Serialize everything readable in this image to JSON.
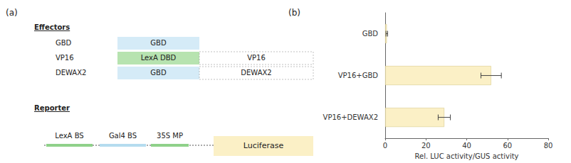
{
  "chart_data": {
    "type": "bar",
    "orientation": "horizontal",
    "categories": [
      "GBD",
      "VP16+GBD",
      "VP16+DEWAX2"
    ],
    "values": [
      0.8,
      52,
      29
    ],
    "errors": [
      0.4,
      5,
      3
    ],
    "color": "#fbf0c6",
    "x_label": "Rel. LUC activity/GUS activity",
    "xlim": [
      0,
      80
    ],
    "xticks": [
      0,
      20,
      40,
      60,
      80
    ],
    "grid": false
  },
  "diagram": {
    "panel_labels": [
      "(a)",
      "(b)"
    ],
    "effectors": {
      "title": "Effectors",
      "rows": [
        {
          "label": "GBD",
          "domains": [
            {
              "text": "GBD",
              "color": "#d5ebf7"
            }
          ]
        },
        {
          "label": "VP16",
          "domains": [
            {
              "text": "LexA DBD",
              "color": "#b7e3b0"
            },
            {
              "text": "VP16",
              "color": "#ffffff"
            }
          ]
        },
        {
          "label": "DEWAX2",
          "domains": [
            {
              "text": "GBD",
              "color": "#d5ebf7"
            },
            {
              "text": "DEWAX2",
              "color": "#ffffff"
            }
          ]
        }
      ]
    },
    "reporter": {
      "title": "Reporter",
      "elements": [
        {
          "text": "LexA BS",
          "color": "#8fd18a"
        },
        {
          "text": "Gal4 BS",
          "color": "#b5dcef"
        },
        {
          "text": "35S MP",
          "color": "#8fd18a"
        }
      ],
      "gene": {
        "text": "Luciferase",
        "color": "#fbf0c6"
      }
    }
  }
}
